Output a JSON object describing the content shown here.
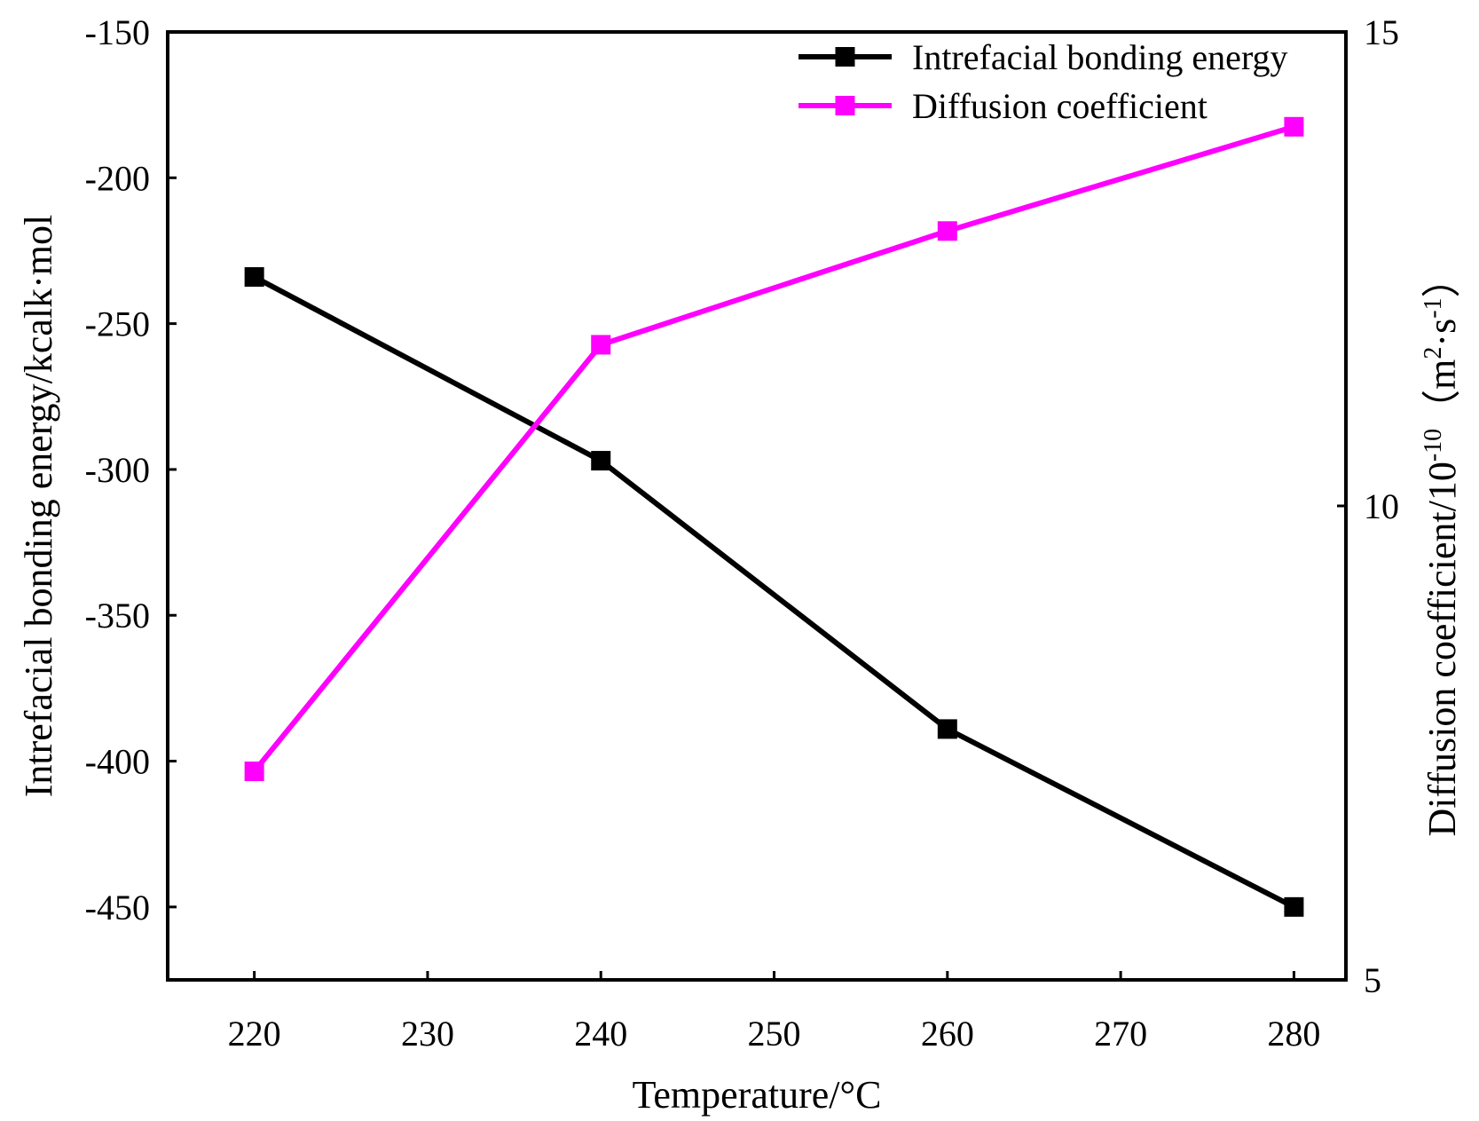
{
  "chart_data": {
    "type": "line",
    "xlabel": "Temperature/°C",
    "ylabel_left": "Intrefacial bonding energy/kcalk·mol",
    "ylabel_right": {
      "prefix": "Diffusion coefficient/10",
      "exponent1": "-10",
      "unit_open": "（m",
      "exponent2": "2",
      "unit_mid": "·s",
      "exponent3": "-1",
      "unit_close": "）"
    },
    "xlim": [
      215,
      283
    ],
    "ylim_left": [
      -475,
      -150
    ],
    "ylim_right": [
      5,
      15
    ],
    "x_ticks": [
      220,
      230,
      240,
      250,
      260,
      270,
      280
    ],
    "y_left_ticks": [
      -150,
      -200,
      -250,
      -300,
      -350,
      -400,
      -450
    ],
    "y_right_ticks": [
      15,
      10,
      5
    ],
    "x": [
      220,
      240,
      260,
      280
    ],
    "series": [
      {
        "name": "Intrefacial bonding energy",
        "axis": "left",
        "color": "#000000",
        "values": [
          -234,
          -297,
          -389,
          -450
        ]
      },
      {
        "name": "Diffusion coefficient",
        "axis": "right",
        "color": "#ff00ff",
        "values": [
          7.2,
          11.7,
          12.9,
          14.0
        ]
      }
    ],
    "legend_position": "top-right",
    "grid": false
  }
}
